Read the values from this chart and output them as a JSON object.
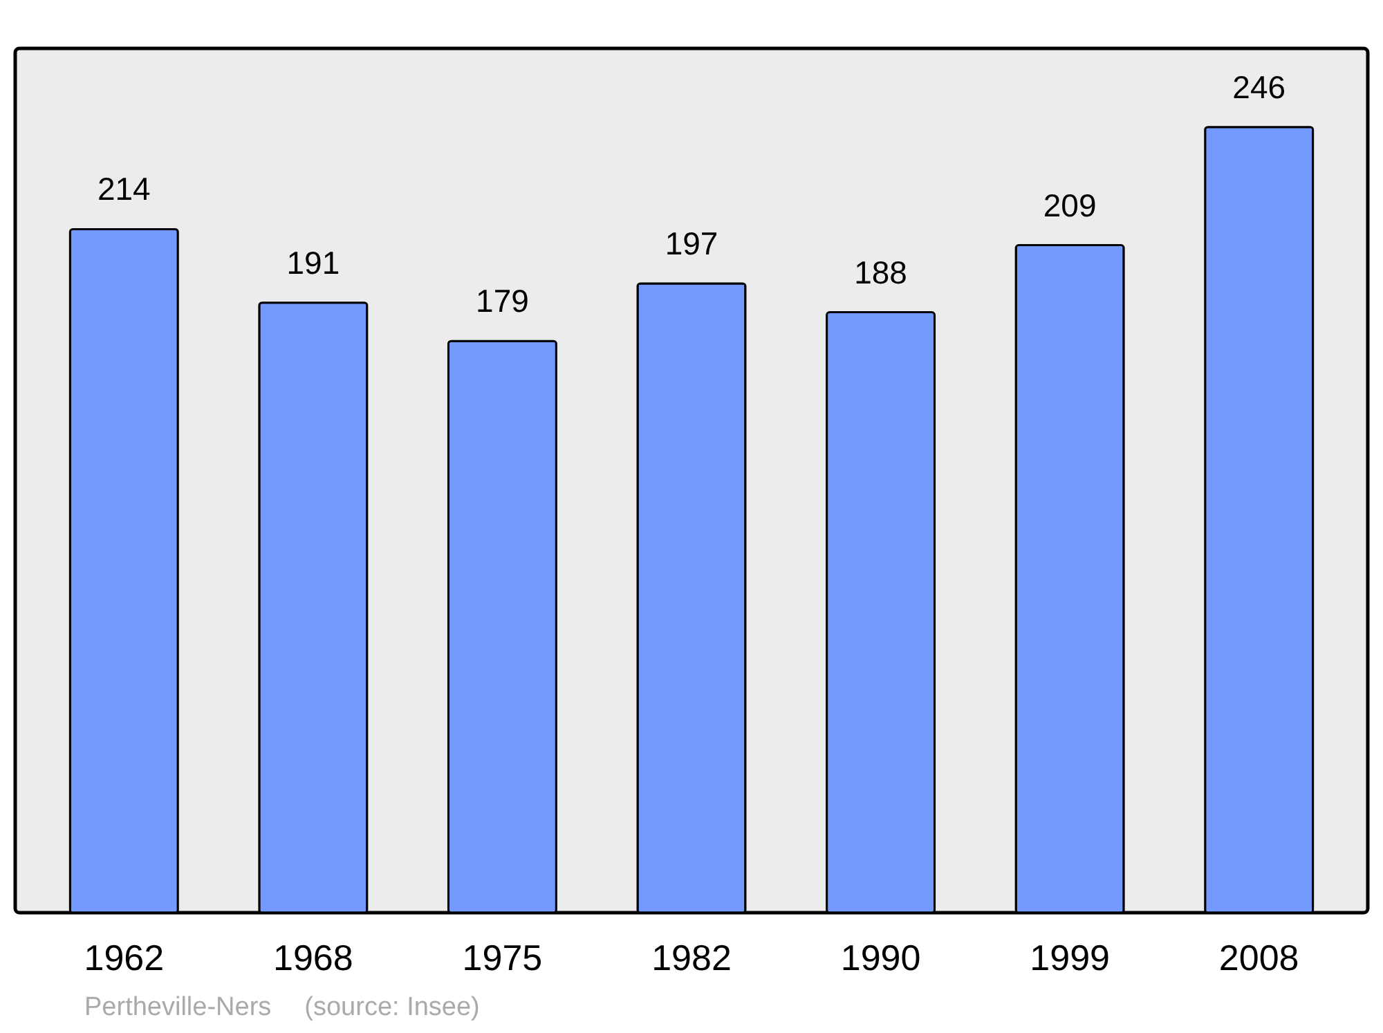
{
  "chart_data": {
    "type": "bar",
    "categories": [
      "1962",
      "1968",
      "1975",
      "1982",
      "1990",
      "1999",
      "2008"
    ],
    "values": [
      214,
      191,
      179,
      197,
      188,
      209,
      246
    ],
    "color": "#7499ff",
    "data_labels": true,
    "annotations": [
      "Pertheville-Ners",
      "(source: Insee)"
    ]
  }
}
